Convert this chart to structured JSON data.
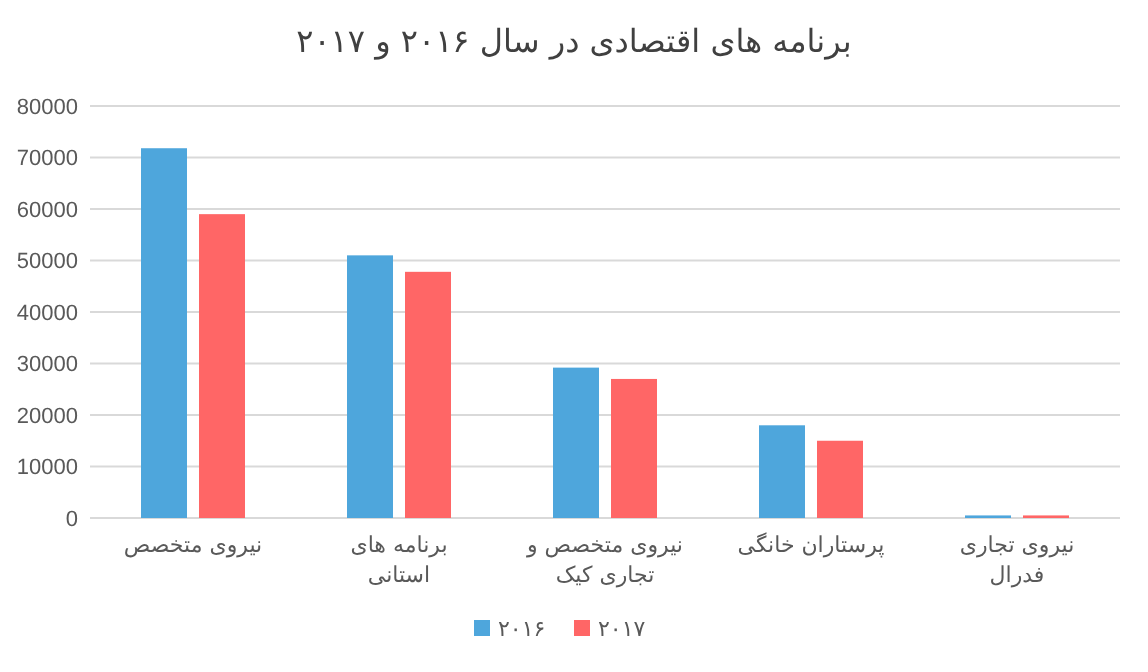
{
  "chart_data": {
    "type": "bar",
    "title": "برنامه های اقتصادی در سال ۲۰۱۶ و ۲۰۱۷",
    "categories": [
      "نیروی متخصص",
      "برنامه های استانی",
      "نیروی متخصص و تجاری کیک",
      "پرستاران خانگی",
      "نیروی تجاری فدرال"
    ],
    "series": [
      {
        "name": "۲۰۱۶",
        "color": "#4ea6dc",
        "values": [
          71800,
          51000,
          29200,
          18000,
          500
        ]
      },
      {
        "name": "۲۰۱۷",
        "color": "#ff6666",
        "values": [
          59000,
          47800,
          27000,
          15000,
          500
        ]
      }
    ],
    "ylim": [
      0,
      80000
    ],
    "yticks": [
      0,
      10000,
      20000,
      30000,
      40000,
      50000,
      60000,
      70000,
      80000
    ],
    "grid": "y",
    "legend": "bottom"
  }
}
